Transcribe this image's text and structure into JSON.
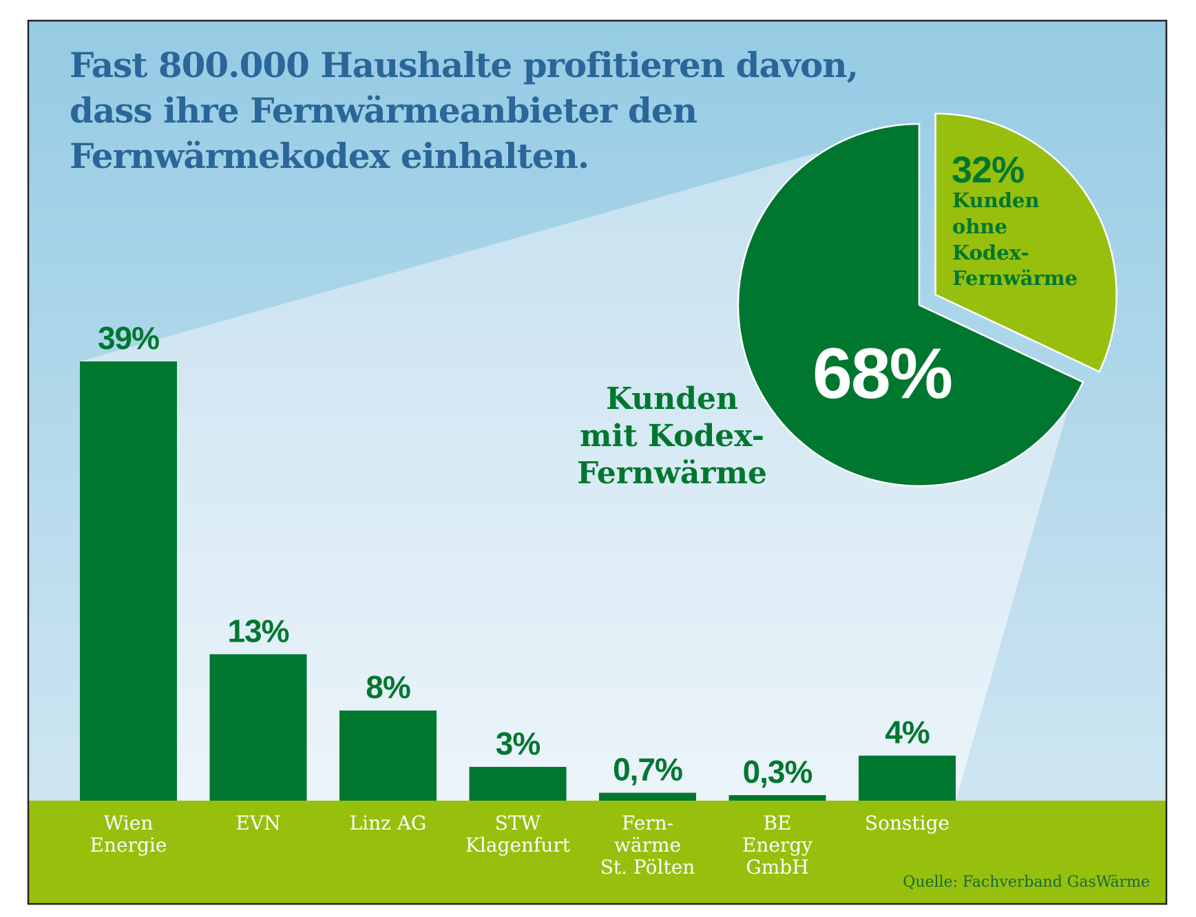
{
  "colors": {
    "bg_top": "#95cbe4",
    "bg_bottom": "#d6e9f3",
    "fan": "#c6e1ef",
    "fan_bottom": "#ecf4fa",
    "bar": "#00772f",
    "band": "#97bf0d",
    "title": "#2a6698",
    "pie_main": "#00772f",
    "pie_other": "#97bf0d",
    "border": "#222222"
  },
  "title_lines": [
    "Fast 800.000 Haushalte profitieren davon,",
    "dass ihre Fernwärmeanbieter den",
    "Fernwärmekodex einhalten."
  ],
  "source": "Quelle: Fachverband GasWärme",
  "chart_data": [
    {
      "type": "bar",
      "title": "Fast 800.000 Haushalte profitieren davon, dass ihre Fernwärmeanbieter den Fernwärmekodex einhalten.",
      "xlabel": "",
      "ylabel": "",
      "unit": "%",
      "ylim": [
        0,
        39
      ],
      "grid": false,
      "categories": [
        [
          "Wien",
          "Energie"
        ],
        [
          "EVN"
        ],
        [
          "Linz AG"
        ],
        [
          "STW",
          "Klagenfurt"
        ],
        [
          "Fern-",
          "wärme",
          "St. Pölten"
        ],
        [
          "BE",
          "Energy",
          "GmbH"
        ],
        [
          "Sonstige"
        ]
      ],
      "values": [
        39,
        13,
        8,
        3,
        0.7,
        0.3,
        4
      ],
      "value_labels": [
        "39%",
        "13%",
        "8%",
        "3%",
        "0,7%",
        "0,3%",
        "4%"
      ]
    },
    {
      "type": "pie",
      "slices": [
        {
          "name": "Kunden mit Kodex-Fernwärme",
          "value": 68,
          "label": "68%",
          "caption_lines": [
            "Kunden",
            "mit Kodex-",
            "Fernwärme"
          ]
        },
        {
          "name": "Kunden ohne Kodex-Fernwärme",
          "value": 32,
          "label": "32%",
          "caption_lines": [
            "Kunden",
            "ohne",
            "Kodex-",
            "Fernwärme"
          ],
          "exploded": true
        }
      ]
    }
  ]
}
